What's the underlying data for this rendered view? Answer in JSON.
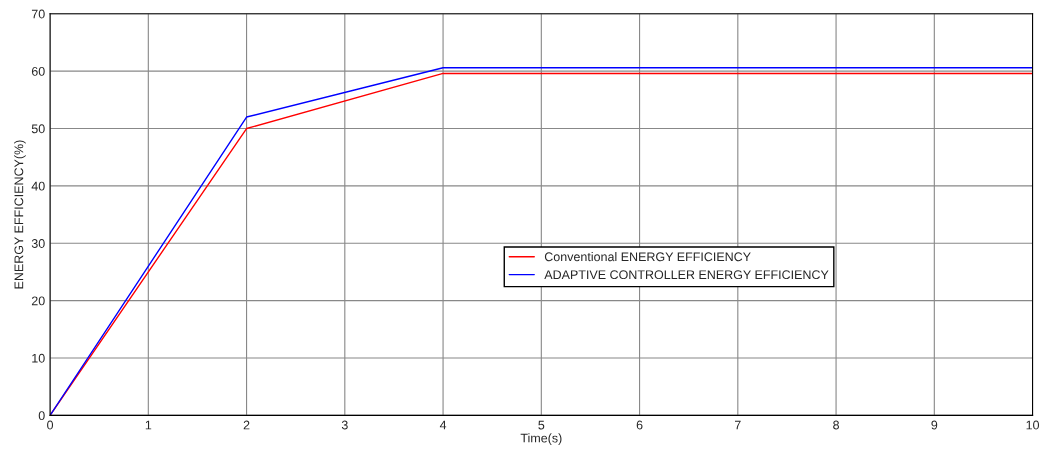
{
  "chart_data": {
    "type": "line",
    "xlabel": "Time(s)",
    "ylabel": "ENERGY EFFICIENCY(%)",
    "x": [
      0,
      2,
      4,
      10
    ],
    "series": [
      {
        "name": "Conventional ENERGY EFFICIENCY",
        "color": "#ff0000",
        "values": [
          0,
          50,
          59.6,
          59.6
        ]
      },
      {
        "name": "ADAPTIVE CONTROLLER ENERGY EFFICIENCY",
        "color": "#0000ff",
        "values": [
          0,
          52,
          60.6,
          60.6
        ]
      }
    ],
    "xlim": [
      0,
      10
    ],
    "ylim": [
      0,
      70
    ],
    "xticks": [
      0,
      1,
      2,
      3,
      4,
      5,
      6,
      7,
      8,
      9,
      10
    ],
    "yticks": [
      0,
      10,
      20,
      30,
      40,
      50,
      60,
      70
    ],
    "grid": true,
    "legend": "center",
    "marker": "none",
    "line_style": "solid"
  }
}
